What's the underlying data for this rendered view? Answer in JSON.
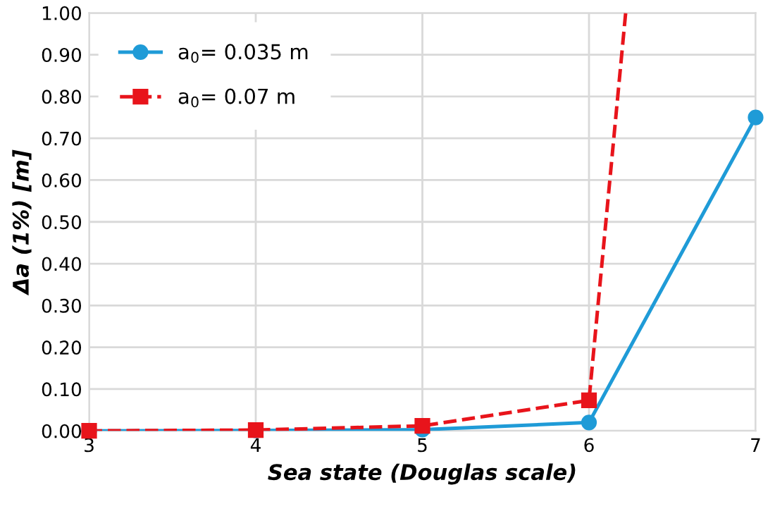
{
  "chart_data": {
    "type": "line",
    "xlabel": "Sea state (Douglas scale)",
    "ylabel": "Δa (1%) [m]",
    "x": [
      3,
      4,
      5,
      6,
      7
    ],
    "series": [
      {
        "name": "a$_{0}$= 0.035 m",
        "color": "#1f9bd7",
        "values": [
          0,
          0.001,
          0.003,
          0.02,
          0.75
        ],
        "marker": "circle",
        "line_style": "solid"
      },
      {
        "name": "a$_{0}$= 0.07 m",
        "color": "#e8141b",
        "x": [
          3,
          4,
          5,
          6,
          6.22
        ],
        "values": [
          0,
          0.002,
          0.012,
          0.073,
          1.0
        ],
        "marker": "square",
        "line_style": "dashed"
      }
    ],
    "xlim": [
      3,
      7
    ],
    "xticks": [
      3,
      4,
      5,
      6,
      7
    ],
    "ylim": [
      0,
      1.0
    ],
    "yticks": [
      {
        "value": 0,
        "label": "0.00"
      },
      {
        "value": 0.1,
        "label": "0.10"
      },
      {
        "value": 0.2,
        "label": "0.20"
      },
      {
        "value": 0.3,
        "label": "0.30"
      },
      {
        "value": 0.4,
        "label": "0.40"
      },
      {
        "value": 0.5,
        "label": "0.50"
      },
      {
        "value": 0.6,
        "label": "0.60"
      },
      {
        "value": 0.7,
        "label": "0.70"
      },
      {
        "value": 0.8,
        "label": "0.80"
      },
      {
        "value": 0.9,
        "label": "0.90"
      },
      {
        "value": 1.0,
        "label": "1.00"
      }
    ],
    "grid": true,
    "legend": "top left"
  }
}
